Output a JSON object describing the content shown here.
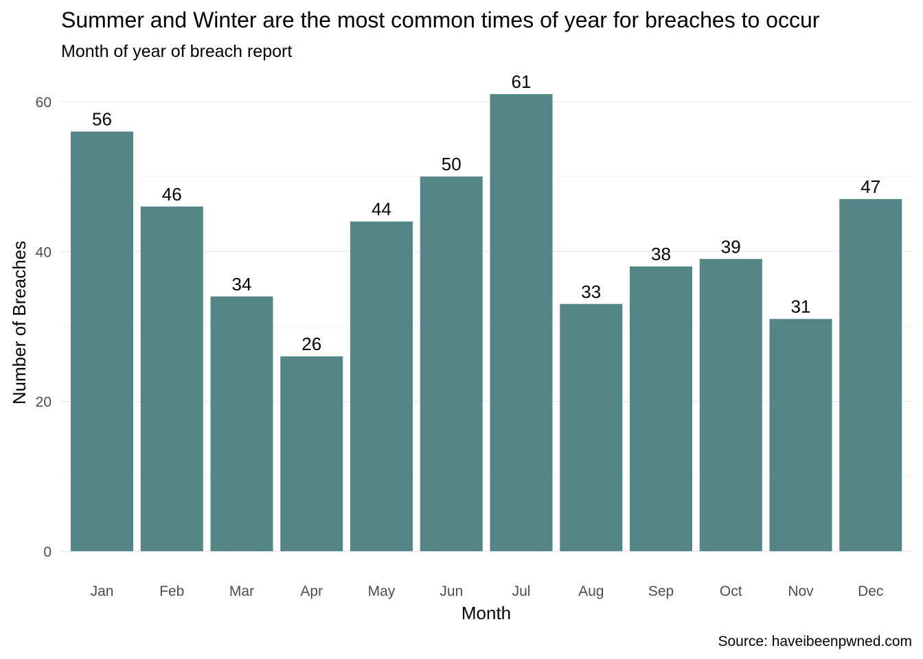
{
  "chart_data": {
    "type": "bar",
    "title": "Summer and Winter are the most common times of year for breaches to occur",
    "subtitle": "Month of year of breach report",
    "xlabel": "Month",
    "ylabel": "Number of Breaches",
    "caption": "Source: haveibeenpwned.com",
    "categories": [
      "Jan",
      "Feb",
      "Mar",
      "Apr",
      "May",
      "Jun",
      "Jul",
      "Aug",
      "Sep",
      "Oct",
      "Nov",
      "Dec"
    ],
    "values": [
      56,
      46,
      34,
      26,
      44,
      50,
      61,
      33,
      38,
      39,
      31,
      47
    ],
    "ylim": [
      0,
      61
    ],
    "yticks": [
      0,
      20,
      40,
      60
    ],
    "yminor": [
      10,
      30,
      50
    ],
    "grid": true,
    "legend": "none",
    "colors": {
      "bar": "#548687"
    }
  }
}
